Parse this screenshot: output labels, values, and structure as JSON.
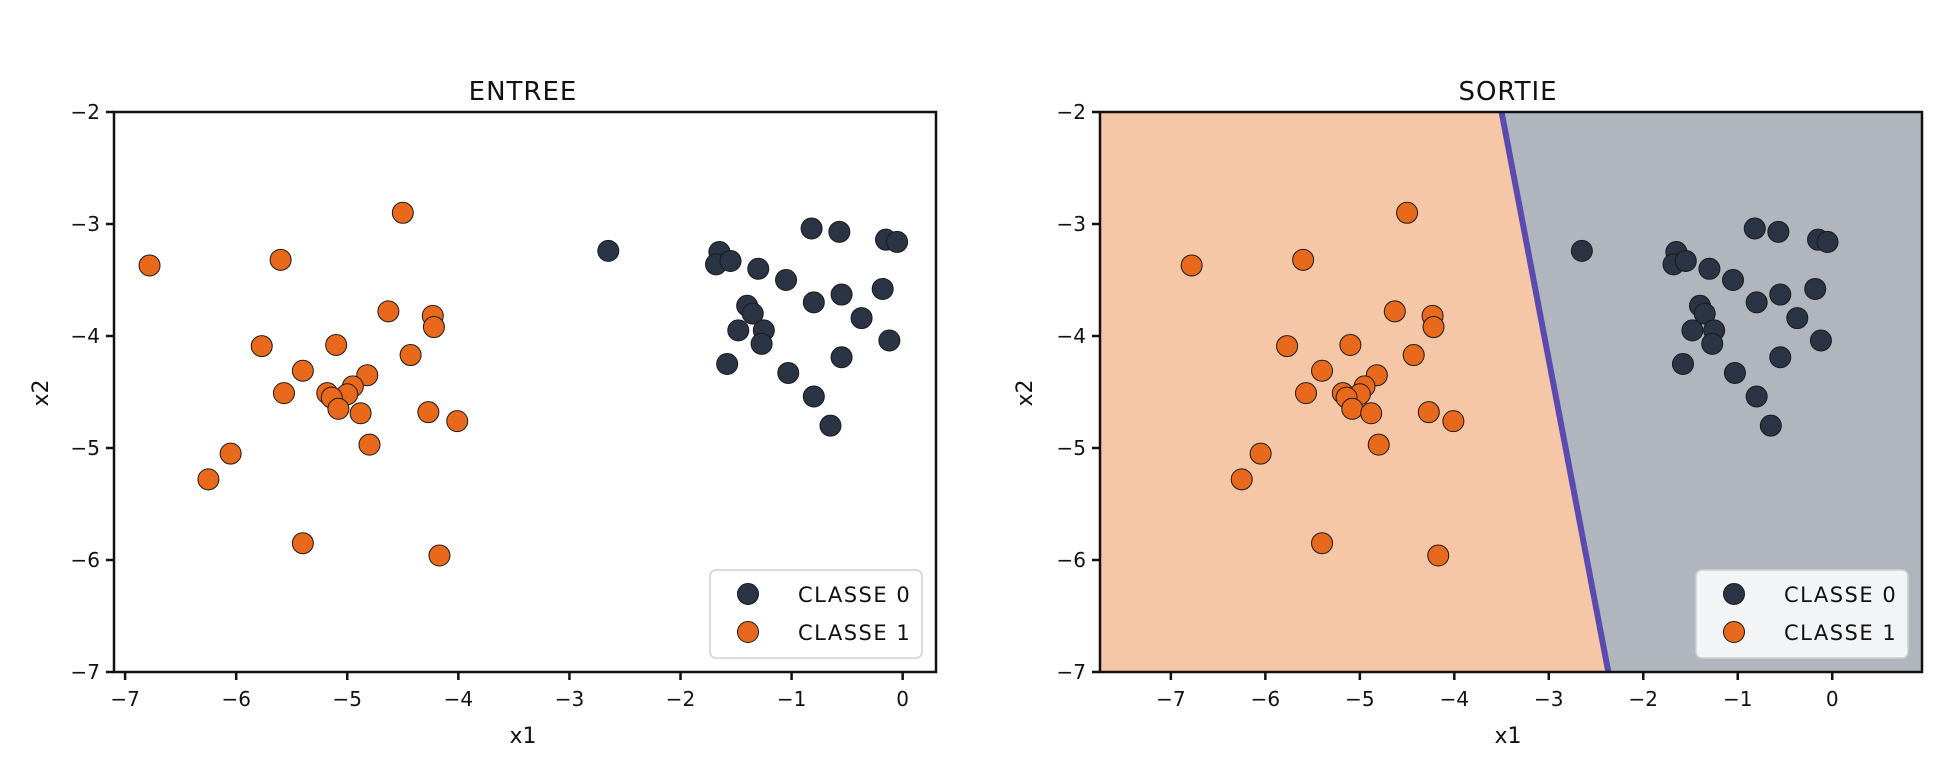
{
  "colors": {
    "class0": "#2b3445",
    "class1": "#e8681c",
    "region0": "#b1b5bd",
    "region1": "#f6c7a6",
    "boundary": "#5b4bb0",
    "axis": "#111111"
  },
  "chart_data": [
    {
      "type": "scatter",
      "title": "ENTREE",
      "xlabel": "x1",
      "ylabel": "x2",
      "xlim": [
        -7.1,
        0.3
      ],
      "ylim": [
        -7,
        -2
      ],
      "xticks": [
        -7,
        -6,
        -5,
        -4,
        -3,
        -2,
        -1,
        0
      ],
      "yticks": [
        -2,
        -3,
        -4,
        -5,
        -6,
        -7
      ],
      "grid": false,
      "legend_position": "lower-right",
      "series": [
        {
          "name": "CLASSE 0",
          "color": "#2b3445",
          "points": [
            [
              -2.65,
              -3.24
            ],
            [
              -1.65,
              -3.25
            ],
            [
              -1.68,
              -3.36
            ],
            [
              -1.55,
              -3.33
            ],
            [
              -1.3,
              -3.4
            ],
            [
              -1.05,
              -3.5
            ],
            [
              -0.82,
              -3.04
            ],
            [
              -0.57,
              -3.07
            ],
            [
              -0.15,
              -3.14
            ],
            [
              -0.05,
              -3.16
            ],
            [
              -1.4,
              -3.73
            ],
            [
              -1.35,
              -3.8
            ],
            [
              -1.48,
              -3.95
            ],
            [
              -1.25,
              -3.95
            ],
            [
              -1.27,
              -4.07
            ],
            [
              -0.8,
              -3.7
            ],
            [
              -0.55,
              -3.63
            ],
            [
              -0.18,
              -3.58
            ],
            [
              -0.37,
              -3.84
            ],
            [
              -1.58,
              -4.25
            ],
            [
              -1.03,
              -4.33
            ],
            [
              -0.55,
              -4.19
            ],
            [
              -0.12,
              -4.04
            ],
            [
              -0.8,
              -4.54
            ],
            [
              -0.65,
              -4.8
            ]
          ]
        },
        {
          "name": "CLASSE 1",
          "color": "#e8681c",
          "points": [
            [
              -6.78,
              -3.37
            ],
            [
              -5.6,
              -3.32
            ],
            [
              -4.5,
              -2.9
            ],
            [
              -5.77,
              -4.09
            ],
            [
              -5.4,
              -4.31
            ],
            [
              -5.57,
              -4.51
            ],
            [
              -5.1,
              -4.08
            ],
            [
              -4.63,
              -3.78
            ],
            [
              -4.23,
              -3.82
            ],
            [
              -4.22,
              -3.92
            ],
            [
              -4.43,
              -4.17
            ],
            [
              -4.82,
              -4.35
            ],
            [
              -4.95,
              -4.45
            ],
            [
              -5.0,
              -4.52
            ],
            [
              -5.18,
              -4.51
            ],
            [
              -5.14,
              -4.55
            ],
            [
              -5.08,
              -4.65
            ],
            [
              -4.88,
              -4.69
            ],
            [
              -4.27,
              -4.68
            ],
            [
              -4.01,
              -4.76
            ],
            [
              -4.8,
              -4.97
            ],
            [
              -6.05,
              -5.05
            ],
            [
              -6.25,
              -5.28
            ],
            [
              -5.4,
              -5.85
            ],
            [
              -4.17,
              -5.96
            ]
          ]
        }
      ]
    },
    {
      "type": "scatter",
      "title": "SORTIE",
      "xlabel": "x1",
      "ylabel": "x2",
      "xlim": [
        -7.75,
        0.95
      ],
      "ylim": [
        -7,
        -2
      ],
      "xticks": [
        -7,
        -6,
        -5,
        -4,
        -3,
        -2,
        -1,
        0
      ],
      "yticks": [
        -2,
        -3,
        -4,
        -5,
        -6,
        -7
      ],
      "grid": false,
      "legend_position": "lower-right",
      "decision_boundary": {
        "x_at_ymin": -2.37,
        "x_at_ymax": -3.5
      },
      "series": [
        {
          "name": "CLASSE 0",
          "color": "#2b3445",
          "points": [
            [
              -2.65,
              -3.24
            ],
            [
              -1.65,
              -3.25
            ],
            [
              -1.68,
              -3.36
            ],
            [
              -1.55,
              -3.33
            ],
            [
              -1.3,
              -3.4
            ],
            [
              -1.05,
              -3.5
            ],
            [
              -0.82,
              -3.04
            ],
            [
              -0.57,
              -3.07
            ],
            [
              -0.15,
              -3.14
            ],
            [
              -0.05,
              -3.16
            ],
            [
              -1.4,
              -3.73
            ],
            [
              -1.35,
              -3.8
            ],
            [
              -1.48,
              -3.95
            ],
            [
              -1.25,
              -3.95
            ],
            [
              -1.27,
              -4.07
            ],
            [
              -0.8,
              -3.7
            ],
            [
              -0.55,
              -3.63
            ],
            [
              -0.18,
              -3.58
            ],
            [
              -0.37,
              -3.84
            ],
            [
              -1.58,
              -4.25
            ],
            [
              -1.03,
              -4.33
            ],
            [
              -0.55,
              -4.19
            ],
            [
              -0.12,
              -4.04
            ],
            [
              -0.8,
              -4.54
            ],
            [
              -0.65,
              -4.8
            ]
          ]
        },
        {
          "name": "CLASSE 1",
          "color": "#e8681c",
          "points": [
            [
              -6.78,
              -3.37
            ],
            [
              -5.6,
              -3.32
            ],
            [
              -4.5,
              -2.9
            ],
            [
              -5.77,
              -4.09
            ],
            [
              -5.4,
              -4.31
            ],
            [
              -5.57,
              -4.51
            ],
            [
              -5.1,
              -4.08
            ],
            [
              -4.63,
              -3.78
            ],
            [
              -4.23,
              -3.82
            ],
            [
              -4.22,
              -3.92
            ],
            [
              -4.43,
              -4.17
            ],
            [
              -4.82,
              -4.35
            ],
            [
              -4.95,
              -4.45
            ],
            [
              -5.0,
              -4.52
            ],
            [
              -5.18,
              -4.51
            ],
            [
              -5.14,
              -4.55
            ],
            [
              -5.08,
              -4.65
            ],
            [
              -4.88,
              -4.69
            ],
            [
              -4.27,
              -4.68
            ],
            [
              -4.01,
              -4.76
            ],
            [
              -4.8,
              -4.97
            ],
            [
              -6.05,
              -5.05
            ],
            [
              -6.25,
              -5.28
            ],
            [
              -5.4,
              -5.85
            ],
            [
              -4.17,
              -5.96
            ]
          ]
        }
      ]
    }
  ]
}
